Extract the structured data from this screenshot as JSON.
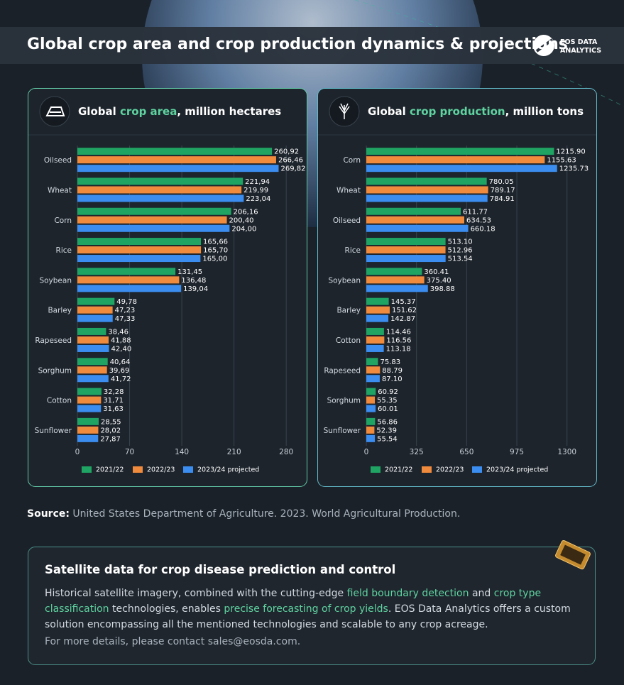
{
  "header": {
    "title": "Global crop area and crop production dynamics & projections",
    "logo": [
      "EOS DATA",
      "ANALYTICS"
    ]
  },
  "chart_data": [
    {
      "type": "bar",
      "orientation": "horizontal",
      "title": [
        {
          "text": "Global "
        },
        {
          "text": "crop area",
          "highlight": true
        },
        {
          "text": ", million hectares"
        }
      ],
      "categories": [
        "Oilseed",
        "Wheat",
        "Corn",
        "Rice",
        "Soybean",
        "Barley",
        "Rapeseed",
        "Sorghum",
        "Cotton",
        "Sunflower"
      ],
      "series": [
        {
          "name": "2021/22",
          "color": "#1fa463",
          "values": [
            260.92,
            221.94,
            206.16,
            165.66,
            131.45,
            49.78,
            38.46,
            40.64,
            32.28,
            28.55
          ],
          "value_labels": [
            "260,92",
            "221,94",
            "206,16",
            "165,66",
            "131,45",
            "49,78",
            "38,46",
            "40,64",
            "32,28",
            "28,55"
          ]
        },
        {
          "name": "2022/23",
          "color": "#f08a3c",
          "values": [
            266.46,
            219.99,
            200.4,
            165.7,
            136.48,
            47.23,
            41.88,
            39.69,
            31.71,
            28.02
          ],
          "value_labels": [
            "266,46",
            "219,99",
            "200,40",
            "165,70",
            "136,48",
            "47,23",
            "41,88",
            "39,69",
            "31,71",
            "28,02"
          ]
        },
        {
          "name": "2023/24 projected",
          "color": "#3b8df0",
          "values": [
            269.82,
            223.04,
            204.0,
            165.0,
            139.04,
            47.33,
            42.4,
            41.72,
            31.63,
            27.87
          ],
          "value_labels": [
            "269,82",
            "223,04",
            "204,00",
            "165,00",
            "139,04",
            "47,33",
            "42,40",
            "41,72",
            "31,63",
            "27,87"
          ]
        }
      ],
      "xlim": [
        0,
        296
      ],
      "xticks": [
        0,
        70,
        140,
        210,
        280
      ],
      "grid": true
    },
    {
      "type": "bar",
      "orientation": "horizontal",
      "title": [
        {
          "text": "Global "
        },
        {
          "text": "crop production",
          "highlight": true
        },
        {
          "text": ", million tons"
        }
      ],
      "categories": [
        "Corn",
        "Wheat",
        "Oilseed",
        "Rice",
        "Soybean",
        "Barley",
        "Cotton",
        "Rapeseed",
        "Sorghum",
        "Sunflower"
      ],
      "series": [
        {
          "name": "2021/22",
          "color": "#1fa463",
          "values": [
            1215.9,
            780.05,
            611.77,
            513.1,
            360.41,
            145.37,
            114.46,
            75.83,
            60.92,
            56.86
          ],
          "value_labels": [
            "1215.90",
            "780.05",
            "611.77",
            "513.10",
            "360.41",
            "145.37",
            "114.46",
            "75.83",
            "60.92",
            "56.86"
          ]
        },
        {
          "name": "2022/23",
          "color": "#f08a3c",
          "values": [
            1155.63,
            789.17,
            634.53,
            512.96,
            375.4,
            151.62,
            116.56,
            88.79,
            55.35,
            52.39
          ],
          "value_labels": [
            "1155.63",
            "789.17",
            "634.53",
            "512.96",
            "375.40",
            "151.62",
            "116.56",
            "88.79",
            "55.35",
            "52.39"
          ]
        },
        {
          "name": "2023/24 projected",
          "color": "#3b8df0",
          "values": [
            1235.73,
            784.91,
            660.18,
            513.54,
            398.88,
            142.87,
            113.18,
            87.1,
            60.01,
            55.54
          ],
          "value_labels": [
            "1235.73",
            "784.91",
            "660.18",
            "513.54",
            "398.88",
            "142.87",
            "113.18",
            "87.10",
            "60.01",
            "55.54"
          ]
        }
      ],
      "xlim": [
        0,
        1430
      ],
      "xticks": [
        0,
        325,
        650,
        975,
        1300
      ],
      "grid": true
    }
  ],
  "source": {
    "label": "Source:",
    "text": "United States Department of Agriculture. 2023. World Agricultural Production."
  },
  "info": {
    "heading": "Satellite data for crop disease prediction and control",
    "body": [
      {
        "text": "Historical satellite imagery, combined with the cutting-edge "
      },
      {
        "text": "field boundary detection",
        "highlight": true
      },
      {
        "text": " and "
      },
      {
        "text": "crop type classification",
        "highlight": true
      },
      {
        "text": " technologies, enables "
      },
      {
        "text": "precise forecasting of crop yields",
        "highlight": true
      },
      {
        "text": ". EOS Data Analytics offers a custom solution encompassing all the mentioned technologies and scalable to any crop acreage."
      }
    ],
    "contact": "For more details, please contact sales@eosda.com."
  }
}
